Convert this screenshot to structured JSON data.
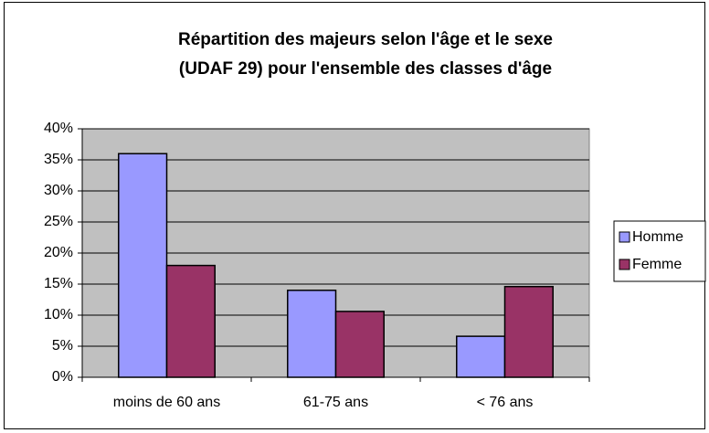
{
  "chart_data": {
    "type": "bar",
    "title": [
      "Répartition des majeurs selon l'âge et le sexe",
      "(UDAF 29) pour l'ensemble des classes d'âge"
    ],
    "categories": [
      "moins de 60 ans",
      "61-75 ans",
      "< 76 ans"
    ],
    "series": [
      {
        "name": "Homme",
        "color": "#9999ff",
        "values": [
          36,
          14,
          6.6
        ]
      },
      {
        "name": "Femme",
        "color": "#993366",
        "values": [
          18,
          10.6,
          14.6
        ]
      }
    ],
    "ylim": [
      0,
      40
    ],
    "yticks": [
      {
        "value": 0,
        "label": "0%"
      },
      {
        "value": 5,
        "label": "5%"
      },
      {
        "value": 10,
        "label": "10%"
      },
      {
        "value": 15,
        "label": "15%"
      },
      {
        "value": 20,
        "label": "20%"
      },
      {
        "value": 25,
        "label": "25%"
      },
      {
        "value": 30,
        "label": "30%"
      },
      {
        "value": 35,
        "label": "35%"
      },
      {
        "value": 40,
        "label": "40%"
      }
    ],
    "grid": true,
    "legend": "right"
  }
}
